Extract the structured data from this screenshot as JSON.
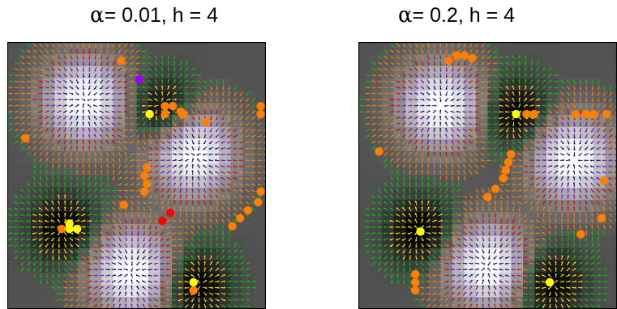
{
  "panels": [
    {
      "alpha_symbol": "α",
      "title_rest": "= 0.01, h = 4",
      "alpha": 0.01,
      "h": 4,
      "bright_centers": [
        [
          0.3,
          0.22
        ],
        [
          0.72,
          0.42
        ],
        [
          0.48,
          0.86
        ]
      ],
      "dark_centers": [
        [
          0.6,
          0.26
        ],
        [
          0.22,
          0.7
        ],
        [
          0.73,
          0.91
        ]
      ],
      "points": [
        {
          "x": 0.44,
          "y": 0.07,
          "c": "orange"
        },
        {
          "x": 0.51,
          "y": 0.14,
          "c": "purple"
        },
        {
          "x": 0.61,
          "y": 0.24,
          "c": "orange"
        },
        {
          "x": 0.64,
          "y": 0.24,
          "c": "orange"
        },
        {
          "x": 0.67,
          "y": 0.26,
          "c": "orange"
        },
        {
          "x": 0.61,
          "y": 0.27,
          "c": "orange"
        },
        {
          "x": 0.68,
          "y": 0.27,
          "c": "orange"
        },
        {
          "x": 0.55,
          "y": 0.27,
          "c": "yellow"
        },
        {
          "x": 0.77,
          "y": 0.3,
          "c": "orange"
        },
        {
          "x": 0.98,
          "y": 0.24,
          "c": "orange"
        },
        {
          "x": 0.98,
          "y": 0.27,
          "c": "orange"
        },
        {
          "x": 0.07,
          "y": 0.36,
          "c": "orange"
        },
        {
          "x": 0.54,
          "y": 0.47,
          "c": "orange"
        },
        {
          "x": 0.53,
          "y": 0.5,
          "c": "orange"
        },
        {
          "x": 0.54,
          "y": 0.53,
          "c": "orange"
        },
        {
          "x": 0.53,
          "y": 0.56,
          "c": "orange"
        },
        {
          "x": 0.98,
          "y": 0.56,
          "c": "orange"
        },
        {
          "x": 0.97,
          "y": 0.6,
          "c": "orange"
        },
        {
          "x": 0.93,
          "y": 0.63,
          "c": "orange"
        },
        {
          "x": 0.9,
          "y": 0.66,
          "c": "orange"
        },
        {
          "x": 0.87,
          "y": 0.69,
          "c": "orange"
        },
        {
          "x": 0.45,
          "y": 0.61,
          "c": "orange"
        },
        {
          "x": 0.63,
          "y": 0.64,
          "c": "red"
        },
        {
          "x": 0.6,
          "y": 0.67,
          "c": "red"
        },
        {
          "x": 0.24,
          "y": 0.68,
          "c": "yellow"
        },
        {
          "x": 0.21,
          "y": 0.7,
          "c": "orange"
        },
        {
          "x": 0.24,
          "y": 0.7,
          "c": "yellow"
        },
        {
          "x": 0.27,
          "y": 0.7,
          "c": "yellow"
        },
        {
          "x": 0.72,
          "y": 0.9,
          "c": "yellow"
        },
        {
          "x": 0.72,
          "y": 0.93,
          "c": "orange"
        }
      ]
    },
    {
      "alpha_symbol": "α",
      "title_rest": "= 0.2, h = 4",
      "alpha": 0.2,
      "h": 4,
      "bright_centers": [
        [
          0.32,
          0.24
        ],
        [
          0.83,
          0.44
        ],
        [
          0.5,
          0.84
        ]
      ],
      "dark_centers": [
        [
          0.61,
          0.27
        ],
        [
          0.24,
          0.71
        ],
        [
          0.74,
          0.9
        ]
      ],
      "points": [
        {
          "x": 0.38,
          "y": 0.05,
          "c": "orange"
        },
        {
          "x": 0.41,
          "y": 0.05,
          "c": "orange"
        },
        {
          "x": 0.44,
          "y": 0.06,
          "c": "orange"
        },
        {
          "x": 0.35,
          "y": 0.07,
          "c": "orange"
        },
        {
          "x": 0.61,
          "y": 0.27,
          "c": "yellow"
        },
        {
          "x": 0.65,
          "y": 0.27,
          "c": "orange"
        },
        {
          "x": 0.68,
          "y": 0.27,
          "c": "orange"
        },
        {
          "x": 0.84,
          "y": 0.27,
          "c": "orange"
        },
        {
          "x": 0.88,
          "y": 0.27,
          "c": "orange"
        },
        {
          "x": 0.91,
          "y": 0.27,
          "c": "orange"
        },
        {
          "x": 0.96,
          "y": 0.27,
          "c": "orange"
        },
        {
          "x": 0.08,
          "y": 0.41,
          "c": "orange"
        },
        {
          "x": 0.59,
          "y": 0.42,
          "c": "orange"
        },
        {
          "x": 0.58,
          "y": 0.45,
          "c": "orange"
        },
        {
          "x": 0.57,
          "y": 0.48,
          "c": "orange"
        },
        {
          "x": 0.56,
          "y": 0.51,
          "c": "orange"
        },
        {
          "x": 0.53,
          "y": 0.55,
          "c": "orange"
        },
        {
          "x": 0.5,
          "y": 0.58,
          "c": "orange"
        },
        {
          "x": 0.95,
          "y": 0.52,
          "c": "orange"
        },
        {
          "x": 0.94,
          "y": 0.66,
          "c": "orange"
        },
        {
          "x": 0.86,
          "y": 0.72,
          "c": "orange"
        },
        {
          "x": 0.24,
          "y": 0.71,
          "c": "yellow"
        },
        {
          "x": 0.22,
          "y": 0.87,
          "c": "orange"
        },
        {
          "x": 0.22,
          "y": 0.9,
          "c": "orange"
        },
        {
          "x": 0.22,
          "y": 0.93,
          "c": "orange"
        },
        {
          "x": 0.74,
          "y": 0.9,
          "c": "yellow"
        }
      ]
    }
  ],
  "colors": {
    "orange": "#ff7f00",
    "yellow": "#ffff00",
    "red": "#ff0000",
    "purple": "#9900ff",
    "arrow_dark": "#000080",
    "arrow_purple": "#7700cc",
    "arrow_red": "#dd0000",
    "arrow_orange": "#ff8000",
    "arrow_yellow": "#ffee00",
    "arrow_green": "#00cc00"
  }
}
